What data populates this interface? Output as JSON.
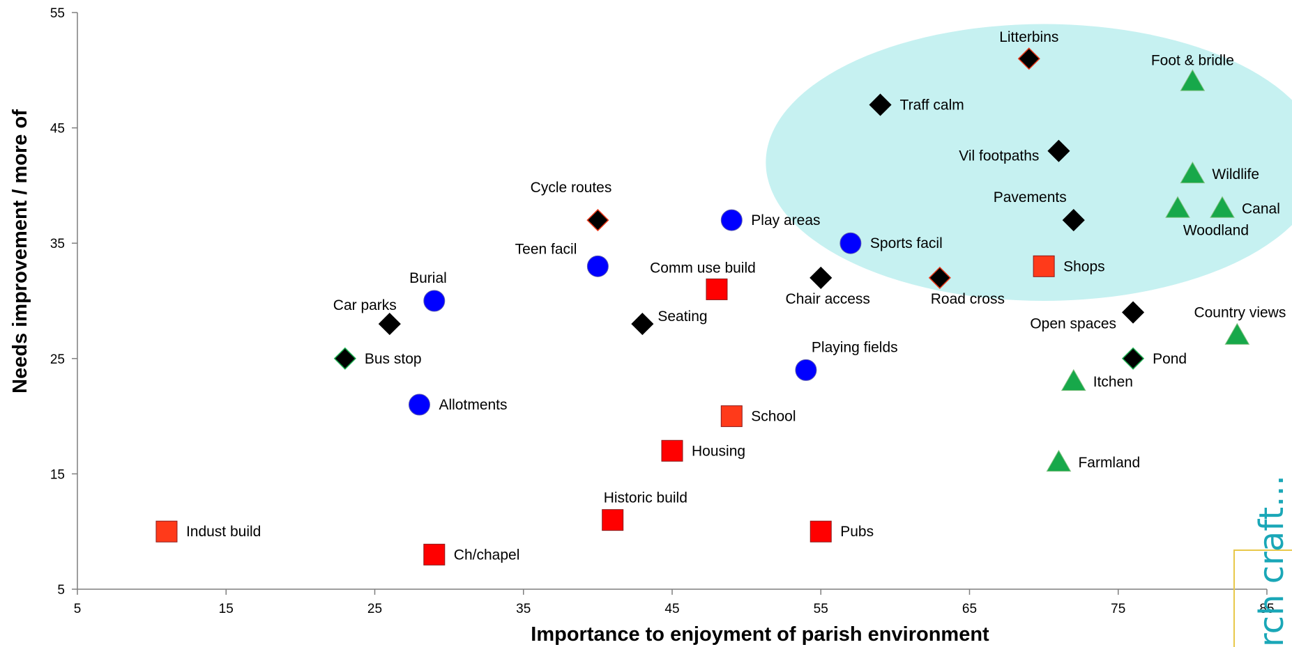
{
  "chart_data": {
    "type": "scatter",
    "title": "",
    "xlabel": "Importance to enjoyment of parish environment",
    "ylabel": "Needs improvement / more of",
    "xlim": [
      5,
      85
    ],
    "ylim": [
      5,
      55
    ],
    "xticks": [
      5,
      15,
      25,
      35,
      45,
      55,
      65,
      75,
      85
    ],
    "yticks": [
      5,
      15,
      25,
      35,
      45,
      55
    ],
    "grid": false,
    "legend": "none",
    "highlight_ellipse": {
      "center_x": 70,
      "center_y": 42,
      "radius_x": 18.7,
      "radius_y": 12,
      "color": "#c6f1f1"
    },
    "colors": {
      "diamond": "#000000",
      "circle": "#0000ff",
      "square": "#ff0000",
      "square_alt": "#ff3a1a",
      "triangle": "#17a84a",
      "axis": "#7f7f7f"
    },
    "points": [
      {
        "label": "Litterbins",
        "x": 69,
        "y": 51,
        "shape": "diamond",
        "stroke": "#e8381a",
        "label_pos": "top"
      },
      {
        "label": "Traff calm",
        "x": 59,
        "y": 47,
        "shape": "diamond",
        "stroke": "#000000",
        "label_pos": "right"
      },
      {
        "label": "Vil footpaths",
        "x": 71,
        "y": 43,
        "shape": "diamond",
        "stroke": "#000000",
        "label_pos": "left"
      },
      {
        "label": "Cycle routes",
        "x": 40,
        "y": 37,
        "shape": "diamond",
        "stroke": "#e8381a",
        "label_pos": "top-left"
      },
      {
        "label": "Pavements",
        "x": 72,
        "y": 37,
        "shape": "diamond",
        "stroke": "#000000",
        "label_pos": "top-left"
      },
      {
        "label": "Chair access",
        "x": 55,
        "y": 32,
        "shape": "diamond",
        "stroke": "#000000",
        "label_pos": "bottom"
      },
      {
        "label": "Road cross",
        "x": 63,
        "y": 32,
        "shape": "diamond",
        "stroke": "#e8381a",
        "label_pos": "bottom"
      },
      {
        "label": "Car parks",
        "x": 26,
        "y": 28,
        "shape": "diamond",
        "stroke": "#000000",
        "label_pos": "top-left"
      },
      {
        "label": "Seating",
        "x": 43,
        "y": 28,
        "shape": "diamond",
        "stroke": "#000000",
        "label_pos": "right-up"
      },
      {
        "label": "Open spaces",
        "x": 76,
        "y": 29,
        "shape": "diamond",
        "stroke": "#000000",
        "label_pos": "left-down"
      },
      {
        "label": "Bus stop",
        "x": 23,
        "y": 25,
        "shape": "diamond",
        "stroke": "#17a84a",
        "label_pos": "right"
      },
      {
        "label": "Pond",
        "x": 76,
        "y": 25,
        "shape": "diamond",
        "stroke": "#17a84a",
        "label_pos": "right"
      },
      {
        "label": "Play areas",
        "x": 49,
        "y": 37,
        "shape": "circle",
        "label_pos": "right"
      },
      {
        "label": "Sports facil",
        "x": 57,
        "y": 35,
        "shape": "circle",
        "label_pos": "right"
      },
      {
        "label": "Teen facil",
        "x": 40,
        "y": 33,
        "shape": "circle",
        "label_pos": "top-left"
      },
      {
        "label": "Burial",
        "x": 29,
        "y": 30,
        "shape": "circle",
        "label_pos": "top-left"
      },
      {
        "label": "Playing fields",
        "x": 54,
        "y": 24,
        "shape": "circle",
        "label_pos": "top-right"
      },
      {
        "label": "Allotments",
        "x": 28,
        "y": 21,
        "shape": "circle",
        "label_pos": "right"
      },
      {
        "label": "Shops",
        "x": 70,
        "y": 33,
        "shape": "square",
        "fill": "#ff3a1a",
        "label_pos": "right"
      },
      {
        "label": "Comm use build",
        "x": 48,
        "y": 31,
        "shape": "square",
        "fill": "#ff0000",
        "label_pos": "top"
      },
      {
        "label": "School",
        "x": 49,
        "y": 20,
        "shape": "square",
        "fill": "#ff3a1a",
        "label_pos": "right"
      },
      {
        "label": "Housing",
        "x": 45,
        "y": 17,
        "shape": "square",
        "fill": "#ff0000",
        "label_pos": "right"
      },
      {
        "label": "Historic build",
        "x": 41,
        "y": 11,
        "shape": "square",
        "fill": "#ff0000",
        "label_pos": "top-right"
      },
      {
        "label": "Indust build",
        "x": 11,
        "y": 10,
        "shape": "square",
        "fill": "#ff3a1a",
        "label_pos": "right"
      },
      {
        "label": "Pubs",
        "x": 55,
        "y": 10,
        "shape": "square",
        "fill": "#ff0000",
        "label_pos": "right"
      },
      {
        "label": "Ch/chapel",
        "x": 29,
        "y": 8,
        "shape": "square",
        "fill": "#ff0000",
        "label_pos": "right"
      },
      {
        "label": "Foot & bridle",
        "x": 80,
        "y": 49,
        "shape": "triangle",
        "label_pos": "top"
      },
      {
        "label": "Wildlife",
        "x": 80,
        "y": 41,
        "shape": "triangle",
        "label_pos": "right"
      },
      {
        "label": "Canal",
        "x": 82,
        "y": 38,
        "shape": "triangle",
        "label_pos": "right"
      },
      {
        "label": "Woodland",
        "x": 79,
        "y": 38,
        "shape": "triangle",
        "label_pos": "bottom-left"
      },
      {
        "label": "Country views",
        "x": 83,
        "y": 27,
        "shape": "triangle",
        "label_pos": "top-left"
      },
      {
        "label": "Itchen",
        "x": 72,
        "y": 23,
        "shape": "triangle",
        "label_pos": "right"
      },
      {
        "label": "Farmland",
        "x": 71,
        "y": 16,
        "shape": "triangle",
        "label_pos": "right"
      }
    ]
  },
  "watermark": {
    "text": "rch craft..."
  }
}
